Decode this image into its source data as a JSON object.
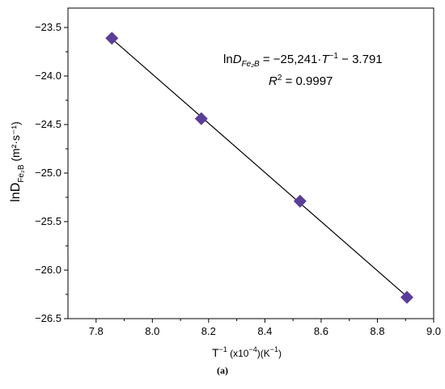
{
  "chart_data": {
    "type": "scatter",
    "title": "",
    "x": [
      7.856,
      8.174,
      8.525,
      8.905
    ],
    "y": [
      -23.61,
      -24.44,
      -25.29,
      -26.28
    ],
    "xlim": [
      7.7,
      9.0
    ],
    "ylim": [
      -26.5,
      -23.3
    ],
    "xticks": [
      7.8,
      8.0,
      8.2,
      8.4,
      8.6,
      8.8,
      9.0
    ],
    "xtick_labels": [
      "7.8",
      "8.0",
      "8.2",
      "8.4",
      "8.6",
      "8.8",
      "9.0"
    ],
    "yticks": [
      -23.5,
      -24.0,
      -24.5,
      -25.0,
      -25.5,
      -26.0,
      -26.5
    ],
    "ytick_labels": [
      "−23.5",
      "−24.0",
      "−24.5",
      "−25.0",
      "−25.5",
      "−26.0",
      "−26.5"
    ],
    "marker": "diamond",
    "marker_color": "#5b3d9a",
    "fit": {
      "slope": -2.5241,
      "intercept": -3.791
    },
    "xlabel": {
      "main": "T",
      "sup1": "−1",
      "mid": " (x10",
      "sup2": "−4",
      "end": ")(K",
      "sup3": "−1",
      "close": ")"
    },
    "ylabel": {
      "main": "lnD",
      "sub": "Fe₂B",
      "rest": " (m²·s⁻¹)"
    },
    "equation": {
      "prefix": "ln",
      "d": "D",
      "d_sub": "Fe₂B",
      "rhs1": " = −25,241·",
      "t": "T",
      "t_sup": "−1",
      "rhs2": " − 3.791"
    },
    "r2": {
      "r": "R",
      "sup": "2",
      "rest": " = 0.9997"
    },
    "grid": false,
    "legend": "none"
  },
  "caption": "(a)"
}
